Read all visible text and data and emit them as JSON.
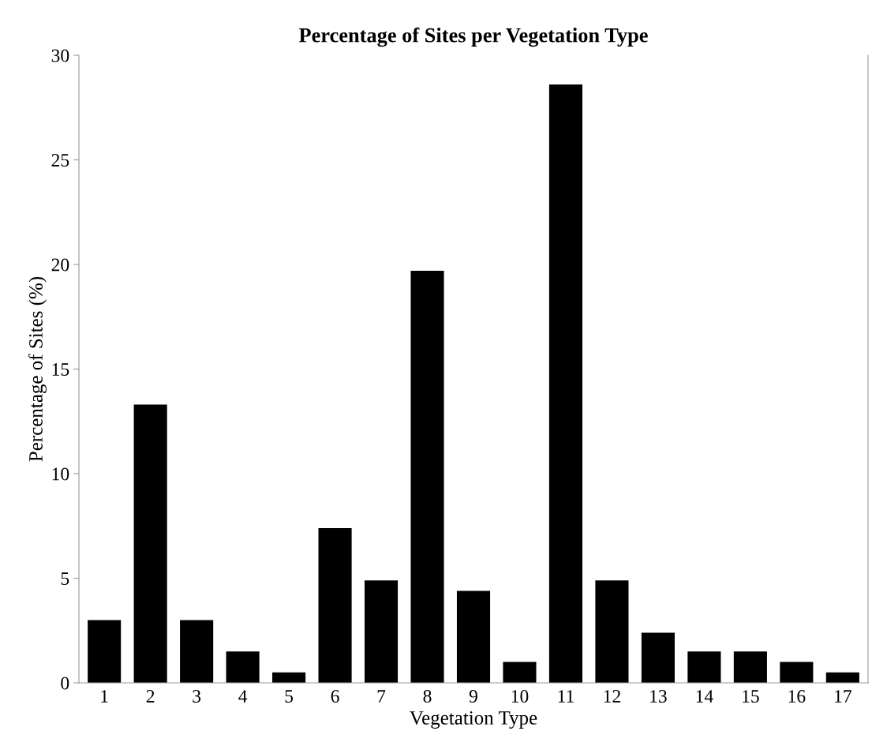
{
  "chart_data": {
    "type": "bar",
    "title": "Percentage of Sites per Vegetation Type",
    "xlabel": "Vegetation Type",
    "ylabel": "Percentage of Sites (%)",
    "categories": [
      "1",
      "2",
      "3",
      "4",
      "5",
      "6",
      "7",
      "8",
      "9",
      "10",
      "11",
      "12",
      "13",
      "14",
      "15",
      "16",
      "17"
    ],
    "values": [
      3.0,
      13.3,
      3.0,
      1.5,
      0.5,
      7.4,
      4.9,
      19.7,
      4.4,
      1.0,
      28.6,
      4.9,
      2.4,
      1.5,
      1.5,
      1.0,
      0.5
    ],
    "color": "#000000",
    "ylim": [
      0,
      30
    ],
    "yticks": [
      0,
      5,
      10,
      15,
      20,
      25,
      30
    ],
    "grid": false,
    "legend": false
  }
}
